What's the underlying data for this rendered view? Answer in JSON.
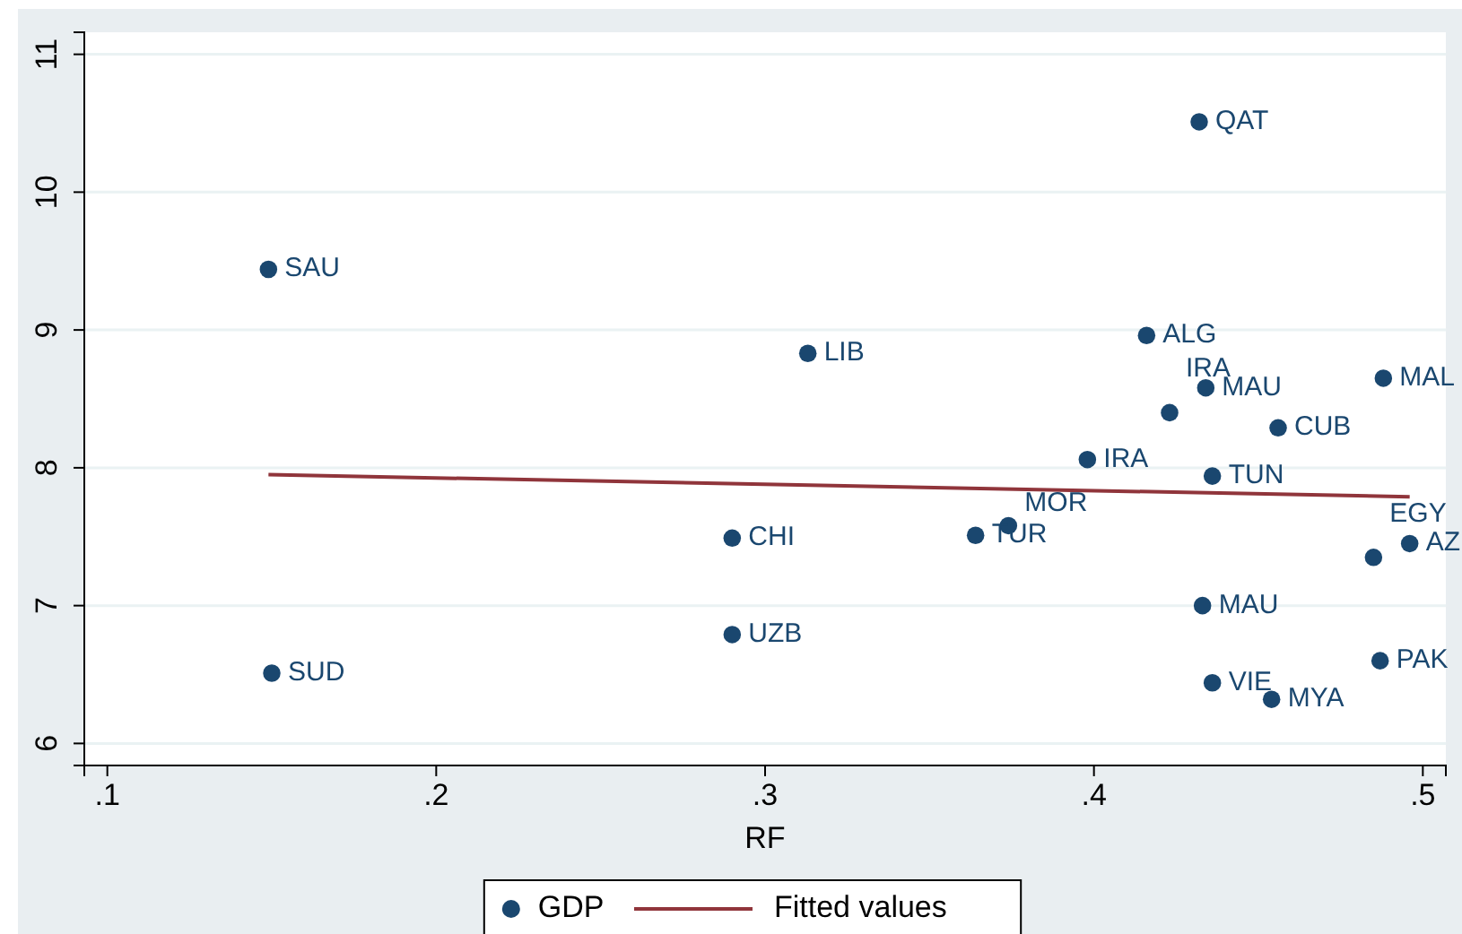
{
  "chart_data": {
    "type": "scatter",
    "xlabel": "RF",
    "xlim": [
      0.093,
      0.507
    ],
    "xticks": [
      {
        "value": 0.1,
        "label": ".1"
      },
      {
        "value": 0.2,
        "label": ".2"
      },
      {
        "value": 0.3,
        "label": ".3"
      },
      {
        "value": 0.4,
        "label": ".4"
      },
      {
        "value": 0.5,
        "label": ".5"
      }
    ],
    "ylim": [
      5.84,
      11.16
    ],
    "yticks": [
      6,
      7,
      8,
      9,
      10,
      11
    ],
    "grid": "y",
    "legend": "bottom",
    "series": [
      {
        "name": "GDP",
        "marker": "circle",
        "color": "#1a476f",
        "x": [
          0.149,
          0.15,
          0.29,
          0.29,
          0.313,
          0.364,
          0.374,
          0.398,
          0.416,
          0.432,
          0.434,
          0.423,
          0.456,
          0.436,
          0.488,
          0.496,
          0.485,
          0.433,
          0.487,
          0.436,
          0.454
        ],
        "values": [
          9.44,
          6.51,
          7.49,
          6.79,
          8.83,
          7.51,
          7.58,
          8.06,
          8.96,
          10.51,
          8.58,
          8.4,
          8.29,
          7.94,
          8.65,
          7.45,
          7.35,
          7.0,
          6.6,
          6.44,
          6.32
        ]
      },
      {
        "name": "Fitted values",
        "type": "line",
        "color": "#90353b",
        "line_style": "solid",
        "x": [
          0.149,
          0.496
        ],
        "values": [
          7.95,
          7.79
        ]
      }
    ],
    "annotations": [
      {
        "text": "SAU",
        "x": 0.149,
        "y": 9.44
      },
      {
        "text": "SUD",
        "x": 0.15,
        "y": 6.51
      },
      {
        "text": "CHI",
        "x": 0.29,
        "y": 7.49
      },
      {
        "text": "UZB",
        "x": 0.29,
        "y": 6.79
      },
      {
        "text": "LIB",
        "x": 0.313,
        "y": 8.83
      },
      {
        "text": "TUR",
        "x": 0.364,
        "y": 7.51
      },
      {
        "text": "MOR",
        "x": 0.374,
        "y": 7.58
      },
      {
        "text": "IRA",
        "x": 0.398,
        "y": 8.06
      },
      {
        "text": "ALG",
        "x": 0.416,
        "y": 8.96
      },
      {
        "text": "QAT",
        "x": 0.432,
        "y": 10.51
      },
      {
        "text": "MAU",
        "x": 0.434,
        "y": 8.58
      },
      {
        "text": "IRA",
        "x": 0.423,
        "y": 8.4
      },
      {
        "text": "CUB",
        "x": 0.456,
        "y": 8.29
      },
      {
        "text": "TUN",
        "x": 0.436,
        "y": 7.94
      },
      {
        "text": "MAL",
        "x": 0.488,
        "y": 8.65
      },
      {
        "text": "AZ",
        "x": 0.496,
        "y": 7.45
      },
      {
        "text": "EGY",
        "x": 0.485,
        "y": 7.35
      },
      {
        "text": "MAU",
        "x": 0.433,
        "y": 7.0
      },
      {
        "text": "PAK",
        "x": 0.487,
        "y": 6.6
      },
      {
        "text": "VIE",
        "x": 0.436,
        "y": 6.44
      },
      {
        "text": "MYA",
        "x": 0.454,
        "y": 6.32
      }
    ]
  }
}
